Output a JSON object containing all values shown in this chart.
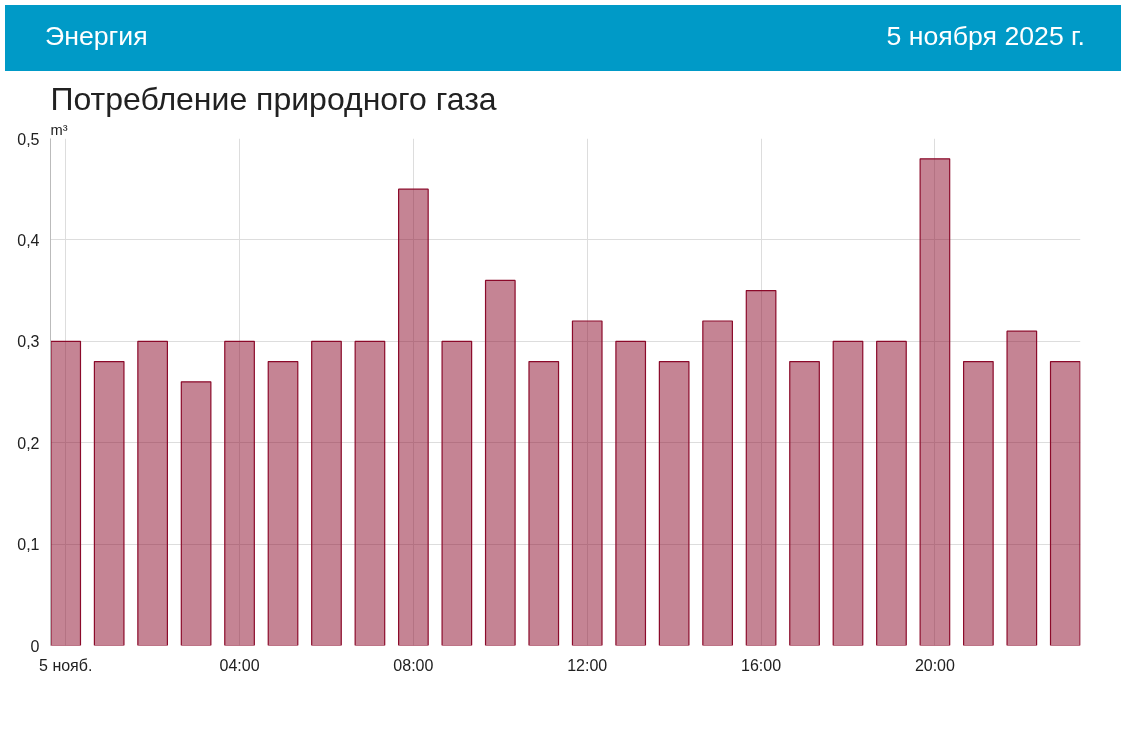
{
  "chart_data": {
    "type": "bar",
    "title": "Потребление природного газа",
    "ylabel": "m³",
    "annotations": [
      "Энергия",
      "5 ноября 2025 г."
    ],
    "x": [
      "2025-11-05T00:00",
      "2025-11-05T01:00",
      "2025-11-05T02:00",
      "2025-11-05T03:00",
      "2025-11-05T04:00",
      "2025-11-05T05:00",
      "2025-11-05T06:00",
      "2025-11-05T07:00",
      "2025-11-05T08:00",
      "2025-11-05T09:00",
      "2025-11-05T10:00",
      "2025-11-05T11:00",
      "2025-11-05T12:00",
      "2025-11-05T13:00",
      "2025-11-05T14:00",
      "2025-11-05T15:00",
      "2025-11-05T16:00",
      "2025-11-05T17:00",
      "2025-11-05T18:00",
      "2025-11-05T19:00",
      "2025-11-05T20:00",
      "2025-11-05T21:00",
      "2025-11-05T22:00",
      "2025-11-05T23:00"
    ],
    "series": [
      {
        "color": "#8b0a2a",
        "values": [
          0.3,
          0.28,
          0.3,
          0.26,
          0.3,
          0.28,
          0.3,
          0.3,
          0.45,
          0.3,
          0.36,
          0.28,
          0.32,
          0.3,
          0.28,
          0.32,
          0.35,
          0.28,
          0.3,
          0.3,
          0.48,
          0.28,
          0.31,
          0.28
        ]
      }
    ],
    "xlim": [
      "2025-11-04T23:39",
      "2025-11-05T23:21"
    ],
    "xticks": [
      {
        "value": "2025-11-05T00:00",
        "label": "5 нояб."
      },
      {
        "value": "2025-11-05T04:00",
        "label": "04:00"
      },
      {
        "value": "2025-11-05T08:00",
        "label": "08:00"
      },
      {
        "value": "2025-11-05T12:00",
        "label": "12:00"
      },
      {
        "value": "2025-11-05T16:00",
        "label": "16:00"
      },
      {
        "value": "2025-11-05T20:00",
        "label": "20:00"
      }
    ],
    "ylim": [
      0,
      0.5
    ],
    "yticks": [
      0,
      {
        "value": 0.1,
        "label": "0,1"
      },
      {
        "value": 0.2,
        "label": "0,2"
      },
      {
        "value": 0.3,
        "label": "0,3"
      },
      {
        "value": 0.4,
        "label": "0,4"
      },
      {
        "value": 0.5,
        "label": "0,5"
      }
    ],
    "grid": true
  }
}
